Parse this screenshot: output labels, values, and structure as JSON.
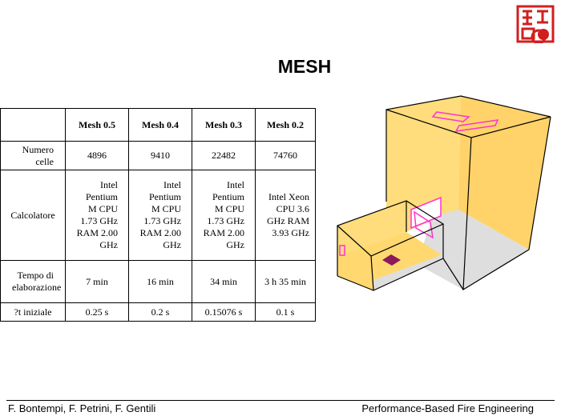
{
  "title": "MESH",
  "table": {
    "headers": [
      "",
      "Mesh 0.5",
      "Mesh 0.4",
      "Mesh 0.3",
      "Mesh 0.2"
    ],
    "rows": [
      {
        "label": "Numero celle",
        "cells": [
          "4896",
          "9410",
          "22482",
          "74760"
        ]
      },
      {
        "label": "Calcolatore",
        "cells": [
          "Intel Pentium M CPU 1.73 GHz RAM 2.00 GHz",
          "Intel Pentium M CPU 1.73 GHz RAM 2.00 GHz",
          "Intel Pentium M CPU 1.73 GHz RAM 2.00 GHz",
          "Intel Xeon CPU 3.6 GHz RAM 3.93 GHz"
        ]
      },
      {
        "label": "Tempo di elaborazione",
        "cells": [
          "7 min",
          "16 min",
          "34 min",
          "3 h 35 min"
        ]
      },
      {
        "label": "?t iniziale",
        "cells": [
          "0.25 s",
          "0.2 s",
          "0.15076 s",
          "0.1 s"
        ]
      }
    ]
  },
  "footer": {
    "authors": "F. Bontempi, F. Petrini, F. Gentili",
    "course": "Performance-Based Fire Engineering"
  },
  "colors": {
    "wall": "#ffd978",
    "floor": "#dedede",
    "vent": "#ff33cc",
    "burner": "#8b1a5a",
    "seal": "#d11f1f"
  }
}
